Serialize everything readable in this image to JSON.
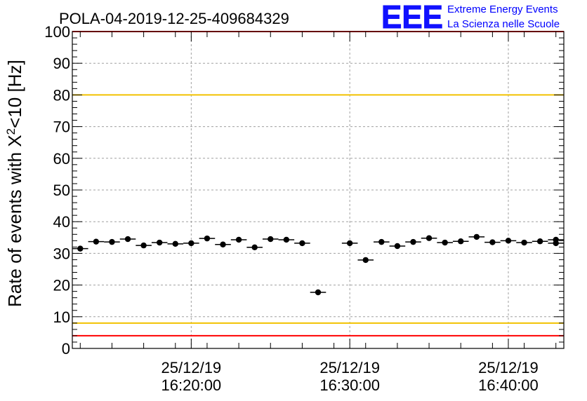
{
  "chart_data": {
    "type": "scatter",
    "title": "POLA-04-2019-12-25-409684329",
    "ylabel_main": "Rate of events with X",
    "ylabel_sup": "2",
    "ylabel_tail": "<10 [Hz]",
    "xlabel": "",
    "ylim": [
      0,
      100
    ],
    "yticks": [
      "0",
      "10",
      "20",
      "30",
      "40",
      "50",
      "60",
      "70",
      "80",
      "90",
      "100"
    ],
    "xticks": [
      {
        "t": 20,
        "line1": "25/12/19",
        "line2": "16:20:00"
      },
      {
        "t": 30,
        "line1": "25/12/19",
        "line2": "16:30:00"
      },
      {
        "t": 40,
        "line1": "25/12/19",
        "line2": "16:40:00"
      }
    ],
    "x_unit": "minutes after 16:00 on 25/12/19",
    "xlim": [
      12.5,
      43.5
    ],
    "bin_width": 1.0,
    "grid": true,
    "reference_lines": [
      {
        "y": 100,
        "color": "#ff0000"
      },
      {
        "y": 80,
        "color": "#f2c200"
      },
      {
        "y": 8,
        "color": "#f2c200"
      },
      {
        "y": 4,
        "color": "#ff0000"
      }
    ],
    "series": [
      {
        "x": [
          13.0,
          14.0,
          15.0,
          16.0,
          17.0,
          18.0,
          19.0,
          20.0,
          21.0,
          22.0,
          23.0,
          24.0,
          25.0,
          26.0,
          27.0,
          28.0,
          29.0,
          30.0,
          31.0,
          32.0,
          33.0,
          34.0,
          35.0,
          36.0,
          37.0,
          38.0,
          39.0,
          40.0,
          41.0,
          42.0,
          43.0
        ],
        "y": [
          31.5,
          33.7,
          33.6,
          34.5,
          32.5,
          33.4,
          33.0,
          33.2,
          34.7,
          32.8,
          34.3,
          31.9,
          34.5,
          34.3,
          33.2,
          17.7,
          null,
          33.2,
          27.9,
          33.6,
          32.3,
          33.6,
          34.8,
          33.4,
          33.8,
          35.2,
          33.5,
          34.0,
          33.4,
          33.8,
          33.2
        ]
      }
    ],
    "extra_point": {
      "x": 43.0,
      "y": 34.3
    }
  },
  "logo": {
    "big": "EEE",
    "line1": "Extreme Energy Events",
    "line2": "La Scienza nelle Scuole",
    "color": "#0000ff"
  },
  "colors": {
    "marker": "#000000",
    "grid": "#a0a0a0",
    "axis": "#000000"
  }
}
